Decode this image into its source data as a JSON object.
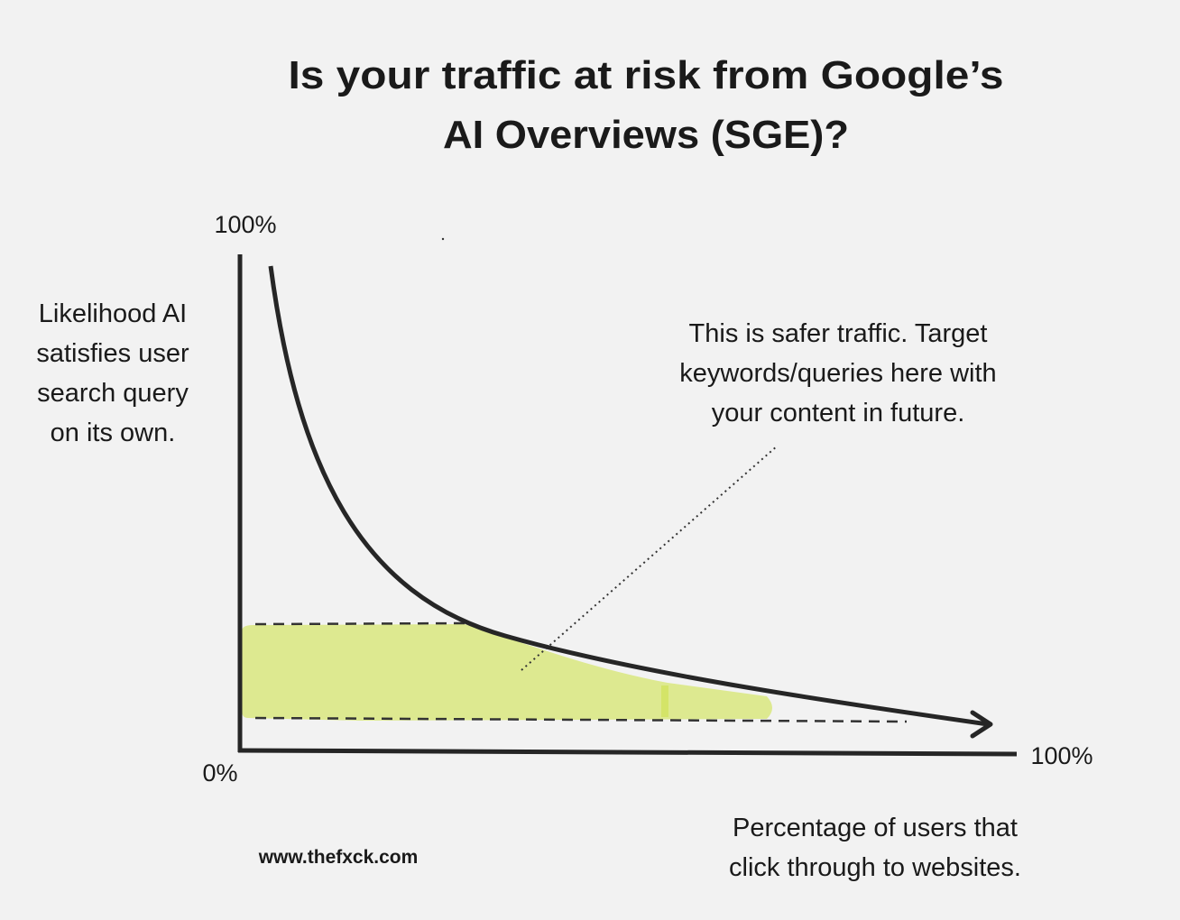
{
  "title": {
    "lines": [
      "Is your traffic at risk from Google’s",
      "AI Overviews (SGE)?"
    ]
  },
  "y_axis": {
    "top_label": "100%",
    "bottom_label": "0%",
    "title_lines": [
      "Likelihood AI",
      "satisfies user",
      "search query",
      "on its own."
    ]
  },
  "x_axis": {
    "end_label": "100%",
    "title_lines": [
      "Percentage of users that",
      "click through to websites."
    ]
  },
  "annotation": {
    "lines": [
      "This is safer traffic. Target",
      "keywords/queries here with",
      "your content in future."
    ]
  },
  "footer": {
    "url": "www.thefxck.com"
  }
}
